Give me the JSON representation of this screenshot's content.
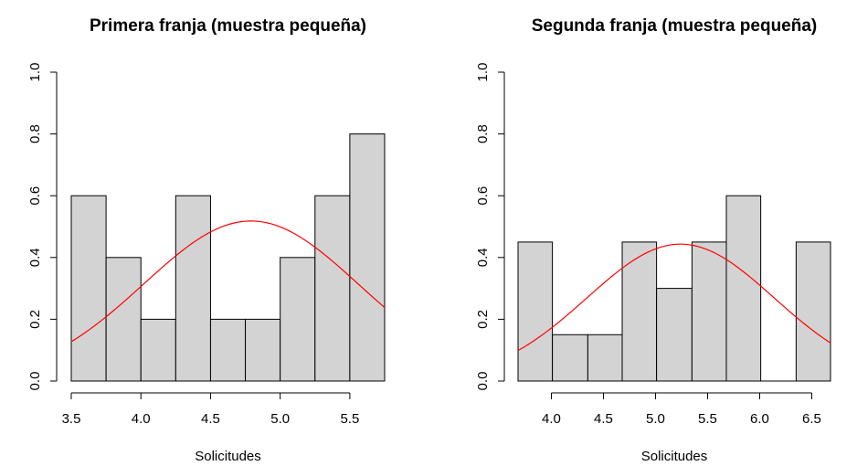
{
  "chart_data": [
    {
      "type": "bar",
      "subtype": "histogram-with-density",
      "title": "Primera franja (muestra pequeña)",
      "xlabel": "Solicitudes",
      "ylabel": "",
      "xlim": [
        3.5,
        5.75
      ],
      "ylim": [
        0,
        1.0
      ],
      "xticks": [
        "3.5",
        "4.0",
        "4.5",
        "5.0",
        "5.5"
      ],
      "yticks": [
        "0.0",
        "0.2",
        "0.4",
        "0.6",
        "0.8",
        "1.0"
      ],
      "bins": [
        {
          "x0": 3.5,
          "x1": 3.75,
          "value": 0.6
        },
        {
          "x0": 3.75,
          "x1": 4.0,
          "value": 0.4
        },
        {
          "x0": 4.0,
          "x1": 4.25,
          "value": 0.2
        },
        {
          "x0": 4.25,
          "x1": 4.5,
          "value": 0.6
        },
        {
          "x0": 4.5,
          "x1": 4.75,
          "value": 0.2
        },
        {
          "x0": 4.75,
          "x1": 5.0,
          "value": 0.2
        },
        {
          "x0": 5.0,
          "x1": 5.25,
          "value": 0.4
        },
        {
          "x0": 5.25,
          "x1": 5.5,
          "value": 0.6
        },
        {
          "x0": 5.5,
          "x1": 5.75,
          "value": 0.8
        }
      ],
      "curve": {
        "mean": 4.79,
        "sd": 0.77,
        "x_range": [
          3.5,
          5.75
        ]
      },
      "colors": {
        "bar_fill": "#d3d3d3",
        "bar_stroke": "#000000",
        "curve": "#ff0000"
      },
      "grid": false
    },
    {
      "type": "bar",
      "subtype": "histogram-with-density",
      "title": "Segunda franja (muestra pequeña)",
      "xlabel": "Solicitudes",
      "ylabel": "",
      "xlim": [
        3.68,
        6.68
      ],
      "ylim": [
        0,
        1.0
      ],
      "xticks": [
        "4.0",
        "4.5",
        "5.0",
        "5.5",
        "6.0",
        "6.5"
      ],
      "yticks": [
        "0.0",
        "0.2",
        "0.4",
        "0.6",
        "0.8",
        "1.0"
      ],
      "bins": [
        {
          "x0": 3.68,
          "x1": 4.01,
          "value": 0.45
        },
        {
          "x0": 4.01,
          "x1": 4.35,
          "value": 0.15
        },
        {
          "x0": 4.35,
          "x1": 4.68,
          "value": 0.15
        },
        {
          "x0": 4.68,
          "x1": 5.01,
          "value": 0.45
        },
        {
          "x0": 5.01,
          "x1": 5.35,
          "value": 0.3
        },
        {
          "x0": 5.35,
          "x1": 5.68,
          "value": 0.45
        },
        {
          "x0": 5.68,
          "x1": 6.01,
          "value": 0.6
        },
        {
          "x0": 6.01,
          "x1": 6.35,
          "value": 0.0
        },
        {
          "x0": 6.35,
          "x1": 6.68,
          "value": 0.45
        }
      ],
      "curve": {
        "mean": 5.24,
        "sd": 0.9,
        "x_range": [
          3.68,
          6.68
        ]
      },
      "colors": {
        "bar_fill": "#d3d3d3",
        "bar_stroke": "#000000",
        "curve": "#ff0000"
      },
      "grid": false
    }
  ]
}
